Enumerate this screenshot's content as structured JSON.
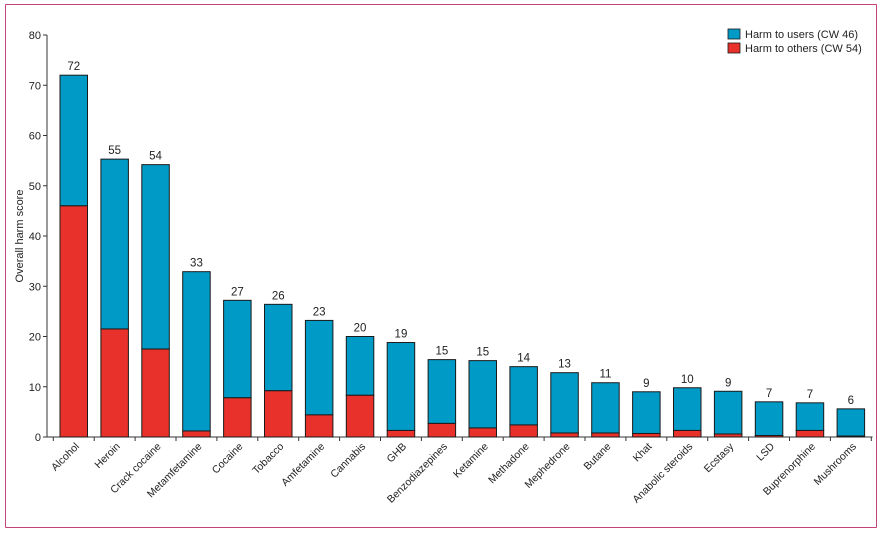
{
  "chart_data": {
    "type": "bar",
    "stacked": true,
    "ylabel": "Overall harm score",
    "ylim": [
      0,
      80
    ],
    "yticks": [
      0,
      10,
      20,
      30,
      40,
      50,
      60,
      70,
      80
    ],
    "categories": [
      "Alcohol",
      "Heroin",
      "Crack cocaine",
      "Metamfetamine",
      "Cocaine",
      "Tobacco",
      "Amfetamine",
      "Cannabis",
      "GHB",
      "Benzodiazepines",
      "Ketamine",
      "Methadone",
      "Mephedrone",
      "Butane",
      "Khat",
      "Anabolic steroids",
      "Ecstasy",
      "LSD",
      "Buprenorphine",
      "Mushrooms"
    ],
    "totals_labels": [
      "72",
      "55",
      "54",
      "33",
      "27",
      "26",
      "23",
      "20",
      "19",
      "15",
      "15",
      "14",
      "13",
      "11",
      "9",
      "10",
      "9",
      "7",
      "7",
      "6"
    ],
    "series": [
      {
        "name": "Harm to others (CW 54)",
        "color": "#e8312a",
        "values": [
          46,
          21.5,
          17.5,
          1.2,
          7.8,
          9.2,
          4.4,
          8.3,
          1.3,
          2.7,
          1.8,
          2.4,
          0.8,
          0.8,
          0.7,
          1.3,
          0.6,
          0.3,
          1.3,
          0.2
        ]
      },
      {
        "name": "Harm to users (CW 46)",
        "color": "#009ac7",
        "values": [
          26,
          33.8,
          36.7,
          31.7,
          19.4,
          17.2,
          18.8,
          11.7,
          17.5,
          12.7,
          13.4,
          11.6,
          12,
          10,
          8.3,
          8.5,
          8.5,
          6.7,
          5.5,
          5.4
        ]
      }
    ],
    "legend": {
      "position": "top-right",
      "items": [
        {
          "label": "Harm to users (CW 46)",
          "color": "#009ac7"
        },
        {
          "label": "Harm to others (CW 54)",
          "color": "#e8312a"
        }
      ]
    },
    "grid": false
  }
}
